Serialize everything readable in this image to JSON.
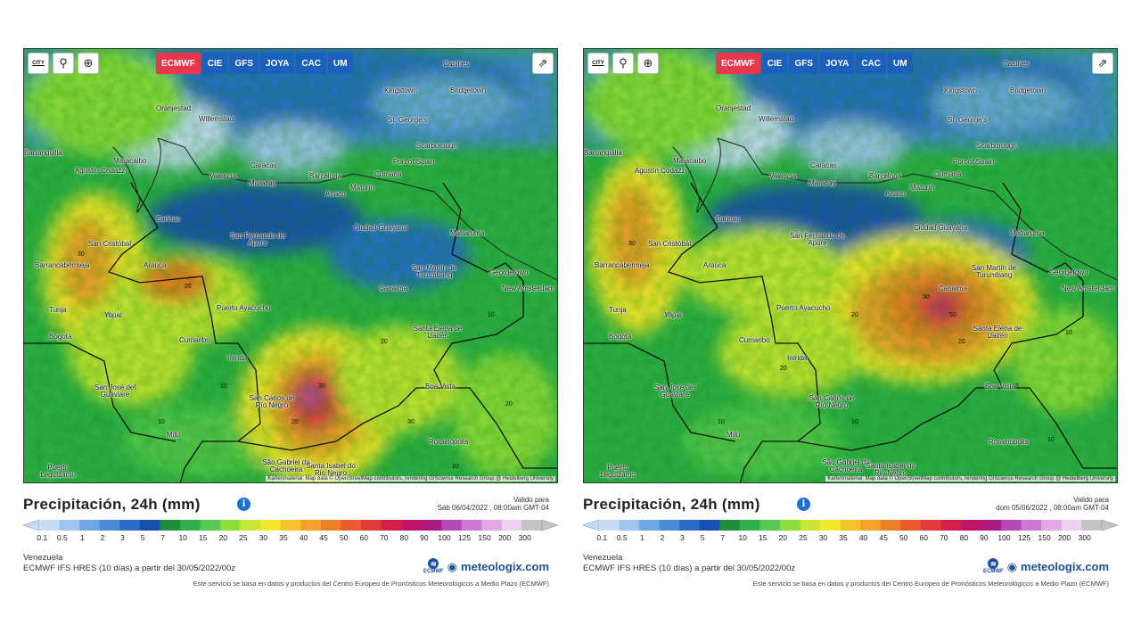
{
  "toolbar": {
    "refresh_icon": "refresh-icon",
    "location_icon": "location-pin-icon",
    "zoom_icon": "zoom-icon",
    "city_label": "CITY",
    "share_icon": "share-icon",
    "models": [
      "ECMWF",
      "CIE",
      "GFS",
      "JOYA",
      "CAC",
      "UM"
    ],
    "active_model": "ECMWF"
  },
  "attribution": "Kartenmaterial: Map data © OpenStreetMap contributors, rendering GIScience Research Group @ Heidelberg University",
  "legend": {
    "title": "Precipitación, 24h (mm)",
    "valid_label": "Valido para",
    "ticks": [
      "0.1",
      "0.5",
      "1",
      "2",
      "3",
      "5",
      "7",
      "10",
      "15",
      "20",
      "25",
      "30",
      "35",
      "40",
      "45",
      "50",
      "60",
      "70",
      "80",
      "90",
      "100",
      "125",
      "150",
      "200",
      "300"
    ],
    "colors": [
      "#c6dcf6",
      "#9fc4ee",
      "#6ea6e6",
      "#4a8ad9",
      "#2a6ccc",
      "#1a4fb2",
      "#1f8e3a",
      "#2fb04a",
      "#57c94f",
      "#8fdc3d",
      "#c8e736",
      "#f3e72f",
      "#f6c22c",
      "#f4a02a",
      "#ef7e28",
      "#ea5a2a",
      "#e03a3a",
      "#d21f4a",
      "#c01567",
      "#aa1a85",
      "#b548b7",
      "#cc78d4",
      "#e1a8e6",
      "#eed0f2",
      "#c4c4c4"
    ]
  },
  "region": "Venezuela",
  "model_line": "ECMWF IFS HRES (10 días) a partir del 30/05/2022/00z",
  "brand": {
    "logo_text": "ECMWF",
    "name": "meteologix.com"
  },
  "footer": "Este servicio se basa en datos y productos del Centro Europeo de Pronósticos Meteorológicos a Medio Plazo (ECMWF)",
  "panels": [
    {
      "valid_date": "Sáb 06/04/2022 , 08:00am GMT-04",
      "cities": [
        {
          "name": "Castries",
          "id": "castries"
        },
        {
          "name": "Kingstown",
          "id": "kingstown"
        },
        {
          "name": "Bridgetown",
          "id": "bridgetown"
        },
        {
          "name": "Oranjestad",
          "id": "oranjestad"
        },
        {
          "name": "Willemstad",
          "id": "willemstad"
        },
        {
          "name": "St. George's",
          "id": "st-georges"
        },
        {
          "name": "Scarborough",
          "id": "scarborough"
        },
        {
          "name": "Port of Spain",
          "id": "port-of-spain"
        },
        {
          "name": "Maracaibo",
          "id": "maracaibo"
        },
        {
          "name": "Barranquilla",
          "id": "barranquilla"
        },
        {
          "name": "Agustín Codazzi",
          "id": "agustin-codazzi"
        },
        {
          "name": "Valencia",
          "id": "valencia"
        },
        {
          "name": "Caracas",
          "id": "caracas"
        },
        {
          "name": "Maracay",
          "id": "maracay"
        },
        {
          "name": "Barcelona",
          "id": "barcelona"
        },
        {
          "name": "Cumaná",
          "id": "cumana"
        },
        {
          "name": "Maturín",
          "id": "maturin"
        },
        {
          "name": "Anaco",
          "id": "anaco"
        },
        {
          "name": "Barinas",
          "id": "barinas"
        },
        {
          "name": "Ciudad Guayana",
          "id": "ciudad-guayana"
        },
        {
          "name": "Mabaruma",
          "id": "mabaruma"
        },
        {
          "name": "San Fernando de Apure",
          "id": "san-fernando"
        },
        {
          "name": "San Cristóbal",
          "id": "san-cristobal"
        },
        {
          "name": "Barrancabermeja",
          "id": "barrancabermeja"
        },
        {
          "name": "Arauca",
          "id": "arauca"
        },
        {
          "name": "San Martín de Turumbang",
          "id": "san-martin"
        },
        {
          "name": "Georgetown",
          "id": "georgetown"
        },
        {
          "name": "New Amsterdam",
          "id": "new-amsterdam"
        },
        {
          "name": "Canaima",
          "id": "canaima"
        },
        {
          "name": "Tunja",
          "id": "tunja"
        },
        {
          "name": "Yopal",
          "id": "yopal"
        },
        {
          "name": "Puerto Ayacucho",
          "id": "puerto-ayacucho"
        },
        {
          "name": "Bogotá",
          "id": "bogota"
        },
        {
          "name": "Cumaribo",
          "id": "cumaribo"
        },
        {
          "name": "Santa Elena de Uairén",
          "id": "santa-elena"
        },
        {
          "name": "Inírida",
          "id": "inirida"
        },
        {
          "name": "San José del Guaviare",
          "id": "san-jose"
        },
        {
          "name": "Boa Vista",
          "id": "boa-vista"
        },
        {
          "name": "San Carlos de Río Negro",
          "id": "san-carlos"
        },
        {
          "name": "Mitú",
          "id": "mitu"
        },
        {
          "name": "Rorainópolis",
          "id": "rorainopolis"
        },
        {
          "name": "São Gabriel da Cachoeira",
          "id": "sao-gabriel"
        },
        {
          "name": "Santa Isabel do Rio Negro",
          "id": "santa-isabel"
        },
        {
          "name": "Puerto Leguízamo",
          "id": "puerto-leguizamo"
        }
      ]
    },
    {
      "valid_date": "dom 05/06/2022 , 08:00am GMT-04",
      "cities": [
        {
          "name": "Castries",
          "id": "castries"
        },
        {
          "name": "Kingstown",
          "id": "kingstown"
        },
        {
          "name": "Bridgetown",
          "id": "bridgetown"
        },
        {
          "name": "Oranjestad",
          "id": "oranjestad"
        },
        {
          "name": "Willemstad",
          "id": "willemstad"
        },
        {
          "name": "St. George's",
          "id": "st-georges"
        },
        {
          "name": "Scarborough",
          "id": "scarborough"
        },
        {
          "name": "Port of Spain",
          "id": "port-of-spain"
        },
        {
          "name": "Maracaibo",
          "id": "maracaibo"
        },
        {
          "name": "Barranquilla",
          "id": "barranquilla"
        },
        {
          "name": "Agustín Codazzi",
          "id": "agustin-codazzi"
        },
        {
          "name": "Valencia",
          "id": "valencia"
        },
        {
          "name": "Caracas",
          "id": "caracas"
        },
        {
          "name": "Maracay",
          "id": "maracay"
        },
        {
          "name": "Barcelona",
          "id": "barcelona"
        },
        {
          "name": "Cumaná",
          "id": "cumana"
        },
        {
          "name": "Maturín",
          "id": "maturin"
        },
        {
          "name": "Anaco",
          "id": "anaco"
        },
        {
          "name": "Barinas",
          "id": "barinas"
        },
        {
          "name": "Ciudad Guayana",
          "id": "ciudad-guayana"
        },
        {
          "name": "Mabaruma",
          "id": "mabaruma"
        },
        {
          "name": "San Fernando de Apure",
          "id": "san-fernando"
        },
        {
          "name": "San Cristóbal",
          "id": "san-cristobal"
        },
        {
          "name": "Barrancabermeja",
          "id": "barrancabermeja"
        },
        {
          "name": "Arauca",
          "id": "arauca"
        },
        {
          "name": "San Martín de Turumbang",
          "id": "san-martin"
        },
        {
          "name": "Georgetown",
          "id": "georgetown"
        },
        {
          "name": "New Amsterdam",
          "id": "new-amsterdam"
        },
        {
          "name": "Canaima",
          "id": "canaima"
        },
        {
          "name": "Tunja",
          "id": "tunja"
        },
        {
          "name": "Yopal",
          "id": "yopal"
        },
        {
          "name": "Puerto Ayacucho",
          "id": "puerto-ayacucho"
        },
        {
          "name": "Bogotá",
          "id": "bogota"
        },
        {
          "name": "Cumaribo",
          "id": "cumaribo"
        },
        {
          "name": "Santa Elena de Uairén",
          "id": "santa-elena"
        },
        {
          "name": "Inírida",
          "id": "inirida"
        },
        {
          "name": "San José del Guaviare",
          "id": "san-jose"
        },
        {
          "name": "Boa Vista",
          "id": "boa-vista"
        },
        {
          "name": "San Carlos de Río Negro",
          "id": "san-carlos"
        },
        {
          "name": "Mitú",
          "id": "mitu"
        },
        {
          "name": "Rorainópolis",
          "id": "rorainopolis"
        },
        {
          "name": "São Gabriel da Cachoeira",
          "id": "sao-gabriel"
        },
        {
          "name": "Santa Isabel do Rio Negro",
          "id": "santa-isabel"
        },
        {
          "name": "Puerto Leguízamo",
          "id": "puerto-leguizamo"
        }
      ]
    }
  ]
}
